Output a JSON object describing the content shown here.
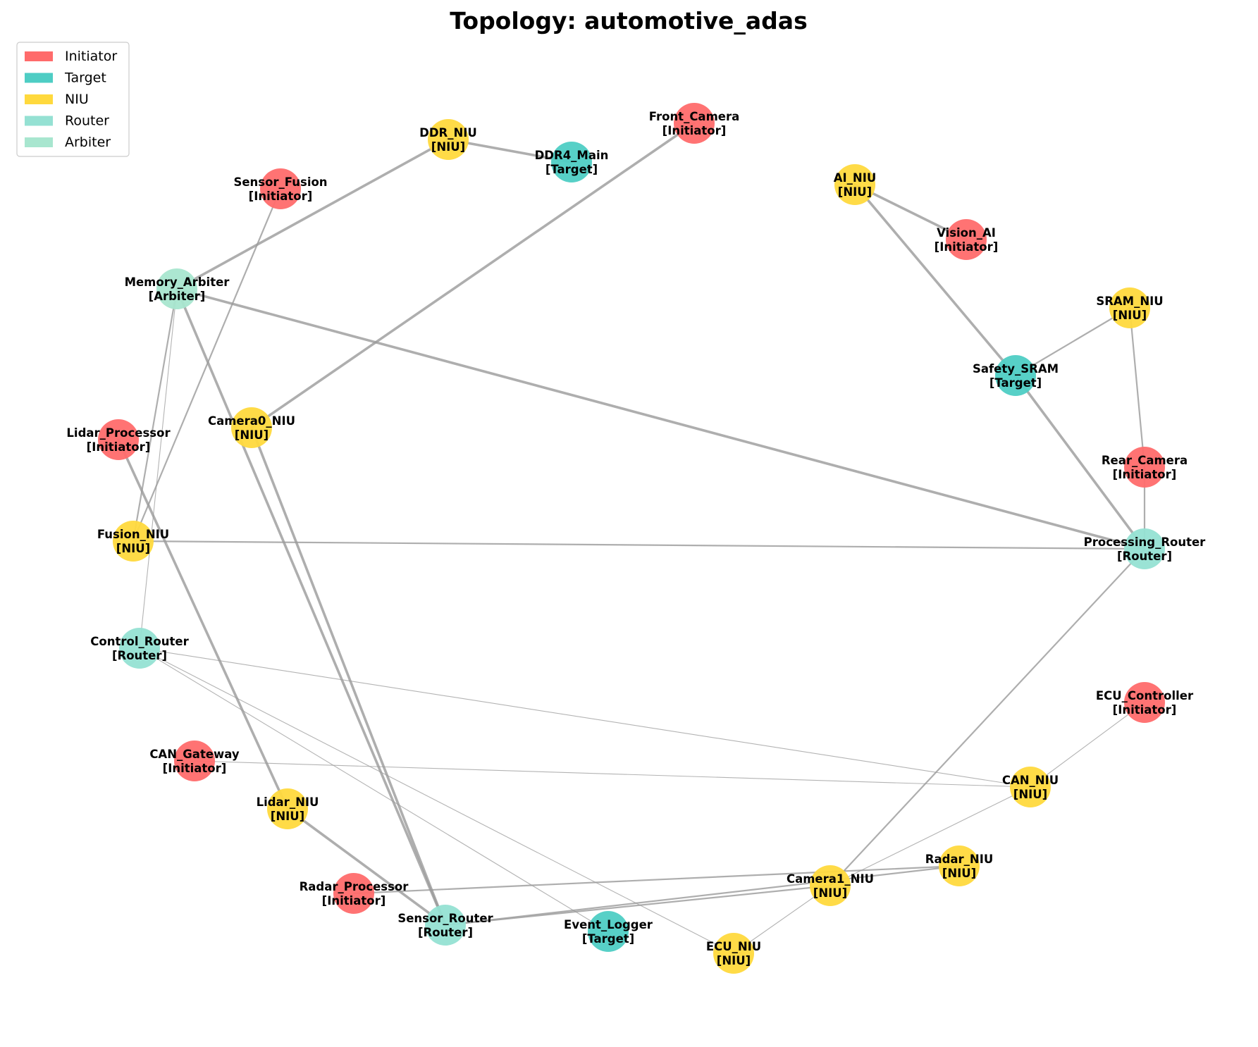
{
  "title": "Topology: automotive_adas",
  "colors": {
    "Initiator": "#ff6b6b",
    "Target": "#4ecdc4",
    "NIU": "#ffd93d",
    "Router": "#95e1d3",
    "Arbiter": "#a8e6cf"
  },
  "legend": [
    {
      "label": "Initiator",
      "type": "Initiator"
    },
    {
      "label": "Target",
      "type": "Target"
    },
    {
      "label": "NIU",
      "type": "NIU"
    },
    {
      "label": "Router",
      "type": "Router"
    },
    {
      "label": "Arbiter",
      "type": "Arbiter"
    }
  ],
  "nodes": [
    {
      "id": "DDR_NIU",
      "label": "DDR_NIU",
      "type": "NIU",
      "tag": "[NIU]"
    },
    {
      "id": "DDR4_Main",
      "label": "DDR4_Main",
      "type": "Target",
      "tag": "[Target]"
    },
    {
      "id": "Front_Camera",
      "label": "Front_Camera",
      "type": "Initiator",
      "tag": "[Initiator]"
    },
    {
      "id": "Sensor_Fusion",
      "label": "Sensor_Fusion",
      "type": "Initiator",
      "tag": "[Initiator]"
    },
    {
      "id": "AI_NIU",
      "label": "AI_NIU",
      "type": "NIU",
      "tag": "[NIU]"
    },
    {
      "id": "Vision_AI",
      "label": "Vision_AI",
      "type": "Initiator",
      "tag": "[Initiator]"
    },
    {
      "id": "Memory_Arbiter",
      "label": "Memory_Arbiter",
      "type": "Arbiter",
      "tag": "[Arbiter]"
    },
    {
      "id": "SRAM_NIU",
      "label": "SRAM_NIU",
      "type": "NIU",
      "tag": "[NIU]"
    },
    {
      "id": "Safety_SRAM",
      "label": "Safety_SRAM",
      "type": "Target",
      "tag": "[Target]"
    },
    {
      "id": "Camera0_NIU",
      "label": "Camera0_NIU",
      "type": "NIU",
      "tag": "[NIU]"
    },
    {
      "id": "Lidar_Processor",
      "label": "Lidar_Processor",
      "type": "Initiator",
      "tag": "[Initiator]"
    },
    {
      "id": "Rear_Camera",
      "label": "Rear_Camera",
      "type": "Initiator",
      "tag": "[Initiator]"
    },
    {
      "id": "Fusion_NIU",
      "label": "Fusion_NIU",
      "type": "NIU",
      "tag": "[NIU]"
    },
    {
      "id": "Processing_Router",
      "label": "Processing_Router",
      "type": "Router",
      "tag": "[Router]"
    },
    {
      "id": "Control_Router",
      "label": "Control_Router",
      "type": "Router",
      "tag": "[Router]"
    },
    {
      "id": "ECU_Controller",
      "label": "ECU_Controller",
      "type": "Initiator",
      "tag": "[Initiator]"
    },
    {
      "id": "CAN_Gateway",
      "label": "CAN_Gateway",
      "type": "Initiator",
      "tag": "[Initiator]"
    },
    {
      "id": "CAN_NIU",
      "label": "CAN_NIU",
      "type": "NIU",
      "tag": "[NIU]"
    },
    {
      "id": "Lidar_NIU",
      "label": "Lidar_NIU",
      "type": "NIU",
      "tag": "[NIU]"
    },
    {
      "id": "Radar_NIU",
      "label": "Radar_NIU",
      "type": "NIU",
      "tag": "[NIU]"
    },
    {
      "id": "Radar_Processor",
      "label": "Radar_Processor",
      "type": "Initiator",
      "tag": "[Initiator]"
    },
    {
      "id": "Camera1_NIU",
      "label": "Camera1_NIU",
      "type": "NIU",
      "tag": "[NIU]"
    },
    {
      "id": "Sensor_Router",
      "label": "Sensor_Router",
      "type": "Router",
      "tag": "[Router]"
    },
    {
      "id": "Event_Logger",
      "label": "Event_Logger",
      "type": "Target",
      "tag": "[Target]"
    },
    {
      "id": "ECU_NIU",
      "label": "ECU_NIU",
      "type": "NIU",
      "tag": "[NIU]"
    }
  ],
  "edges": [
    {
      "from": "DDR_NIU",
      "to": "DDR4_Main",
      "weight": "heavy"
    },
    {
      "from": "DDR_NIU",
      "to": "Memory_Arbiter",
      "weight": "heavy"
    },
    {
      "from": "Front_Camera",
      "to": "Camera0_NIU",
      "weight": "heavy"
    },
    {
      "from": "AI_NIU",
      "to": "Vision_AI",
      "weight": "heavy"
    },
    {
      "from": "AI_NIU",
      "to": "Safety_SRAM",
      "weight": "heavy"
    },
    {
      "from": "Safety_SRAM",
      "to": "Processing_Router",
      "weight": "heavy"
    },
    {
      "from": "Memory_Arbiter",
      "to": "Processing_Router",
      "weight": "heavy"
    },
    {
      "from": "Memory_Arbiter",
      "to": "Sensor_Router",
      "weight": "heavy"
    },
    {
      "from": "Camera0_NIU",
      "to": "Sensor_Router",
      "weight": "heavy"
    },
    {
      "from": "Lidar_Processor",
      "to": "Lidar_NIU",
      "weight": "heavy"
    },
    {
      "from": "Lidar_NIU",
      "to": "Sensor_Router",
      "weight": "heavy"
    },
    {
      "from": "Sensor_Fusion",
      "to": "Fusion_NIU",
      "weight": "medium"
    },
    {
      "from": "Memory_Arbiter",
      "to": "Fusion_NIU",
      "weight": "medium"
    },
    {
      "from": "Memory_Arbiter",
      "to": "Control_Router",
      "weight": "light"
    },
    {
      "from": "Fusion_NIU",
      "to": "Processing_Router",
      "weight": "medium"
    },
    {
      "from": "SRAM_NIU",
      "to": "Safety_SRAM",
      "weight": "medium"
    },
    {
      "from": "SRAM_NIU",
      "to": "Rear_Camera",
      "weight": "medium"
    },
    {
      "from": "Rear_Camera",
      "to": "Processing_Router",
      "weight": "medium"
    },
    {
      "from": "Processing_Router",
      "to": "Camera1_NIU",
      "weight": "medium"
    },
    {
      "from": "Sensor_Router",
      "to": "Camera1_NIU",
      "weight": "medium"
    },
    {
      "from": "Sensor_Router",
      "to": "Radar_NIU",
      "weight": "medium"
    },
    {
      "from": "Radar_Processor",
      "to": "Radar_NIU",
      "weight": "medium"
    },
    {
      "from": "Control_Router",
      "to": "CAN_NIU",
      "weight": "light"
    },
    {
      "from": "Control_Router",
      "to": "Event_Logger",
      "weight": "light"
    },
    {
      "from": "Control_Router",
      "to": "ECU_NIU",
      "weight": "light"
    },
    {
      "from": "CAN_Gateway",
      "to": "CAN_NIU",
      "weight": "light"
    },
    {
      "from": "ECU_Controller",
      "to": "CAN_NIU",
      "weight": "light"
    },
    {
      "from": "CAN_NIU",
      "to": "Camera1_NIU",
      "weight": "light"
    },
    {
      "from": "ECU_NIU",
      "to": "Camera1_NIU",
      "weight": "light"
    }
  ]
}
